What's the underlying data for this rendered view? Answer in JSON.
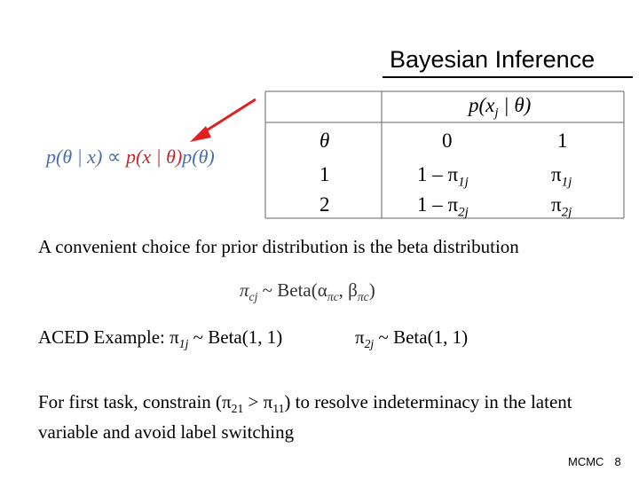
{
  "slide": {
    "title": "Bayesian Inference",
    "formula": {
      "lhs": "p(θ | x)",
      "prop": "∝",
      "likelihood": "p(x | θ)",
      "prior": "p(θ)"
    },
    "table": {
      "header": "p(x",
      "header_sub": "j",
      "header_tail": " | θ)",
      "col_labels": [
        "θ",
        "0",
        "1"
      ],
      "rows": [
        {
          "theta": "1",
          "c0": "1 – π",
          "c0_sub": "1j",
          "c1": "π",
          "c1_sub": "1j"
        },
        {
          "theta": "2",
          "c0": "1 – π",
          "c0_sub": "2j",
          "c1": "π",
          "c1_sub": "2j"
        }
      ]
    },
    "sentence": "A convenient choice for prior distribution is the beta distribution",
    "prior_formula": {
      "lhs": "π",
      "lhs_sub": "cj",
      "rest": " ~ Beta(α",
      "alpha_sub": "πc",
      "mid": ", β",
      "beta_sub": "πc",
      "end": ")"
    },
    "example": {
      "label": "ACED Example: ",
      "p1": "π",
      "p1_sub": "1j",
      "p1_rest": " ~ Beta(1, 1)",
      "p2": "π",
      "p2_sub": "2j",
      "p2_rest": " ~ Beta(1, 1)"
    },
    "paragraph": {
      "a": "For first task, constrain (π",
      "s1": "21",
      "b": " > π",
      "s2": "11",
      "c": ") to resolve indeterminacy in the latent variable and avoid label switching"
    },
    "footer": {
      "label": "MCMC",
      "page": "8"
    },
    "colors": {
      "formula_blue": "#4b6fa8",
      "highlight_red": "#c0282d",
      "arrow_red": "#e02020"
    }
  }
}
